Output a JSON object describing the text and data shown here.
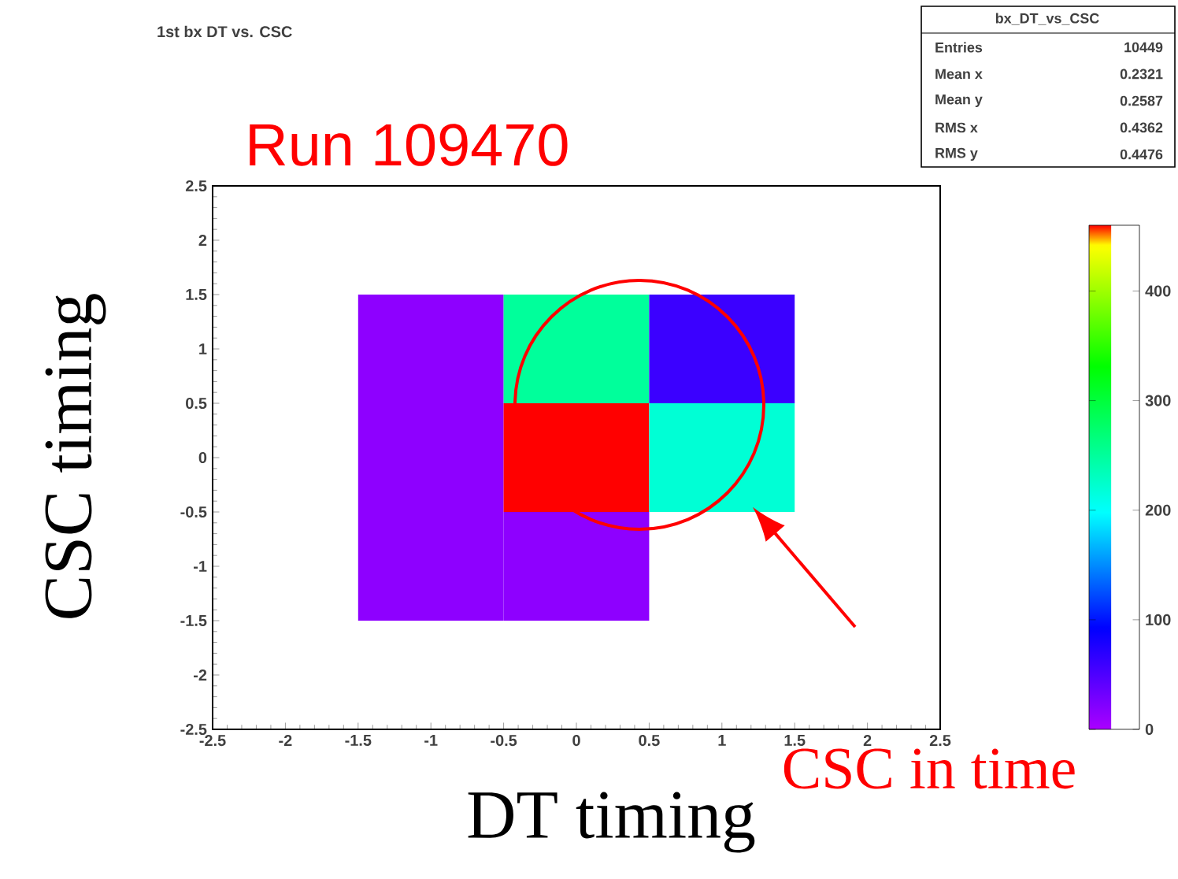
{
  "chart_data": {
    "type": "heatmap",
    "title": "1st bx DT vs. CSC",
    "xlabel": "DT timing",
    "ylabel": "CSC timing",
    "x": [
      -1,
      0,
      1
    ],
    "y": [
      1,
      0,
      -1
    ],
    "xlim": [
      -2.5,
      2.5
    ],
    "ylim": [
      -2.5,
      2.5
    ],
    "xticks": [
      -2.5,
      -2,
      -1.5,
      -1,
      -0.5,
      0,
      0.5,
      1,
      1.5,
      2,
      2.5
    ],
    "yticks": [
      -2.5,
      -2,
      -1.5,
      -1,
      -0.5,
      0,
      0.5,
      1,
      1.5,
      2,
      2.5
    ],
    "cells": [
      [
        15,
        250,
        60
      ],
      [
        15,
        460,
        220
      ],
      [
        15,
        15,
        null
      ]
    ],
    "clim": [
      0,
      460
    ],
    "cticks": [
      0,
      100,
      200,
      300,
      400
    ],
    "annotations": [
      "Run 109470",
      "CSC in time",
      "bx_DT_vs_CSC",
      "Entries",
      "10449",
      "Mean x",
      "0.2321",
      "Mean y",
      "0.2587",
      "RMS x",
      "0.4362",
      "RMS y",
      "0.4476"
    ]
  }
}
